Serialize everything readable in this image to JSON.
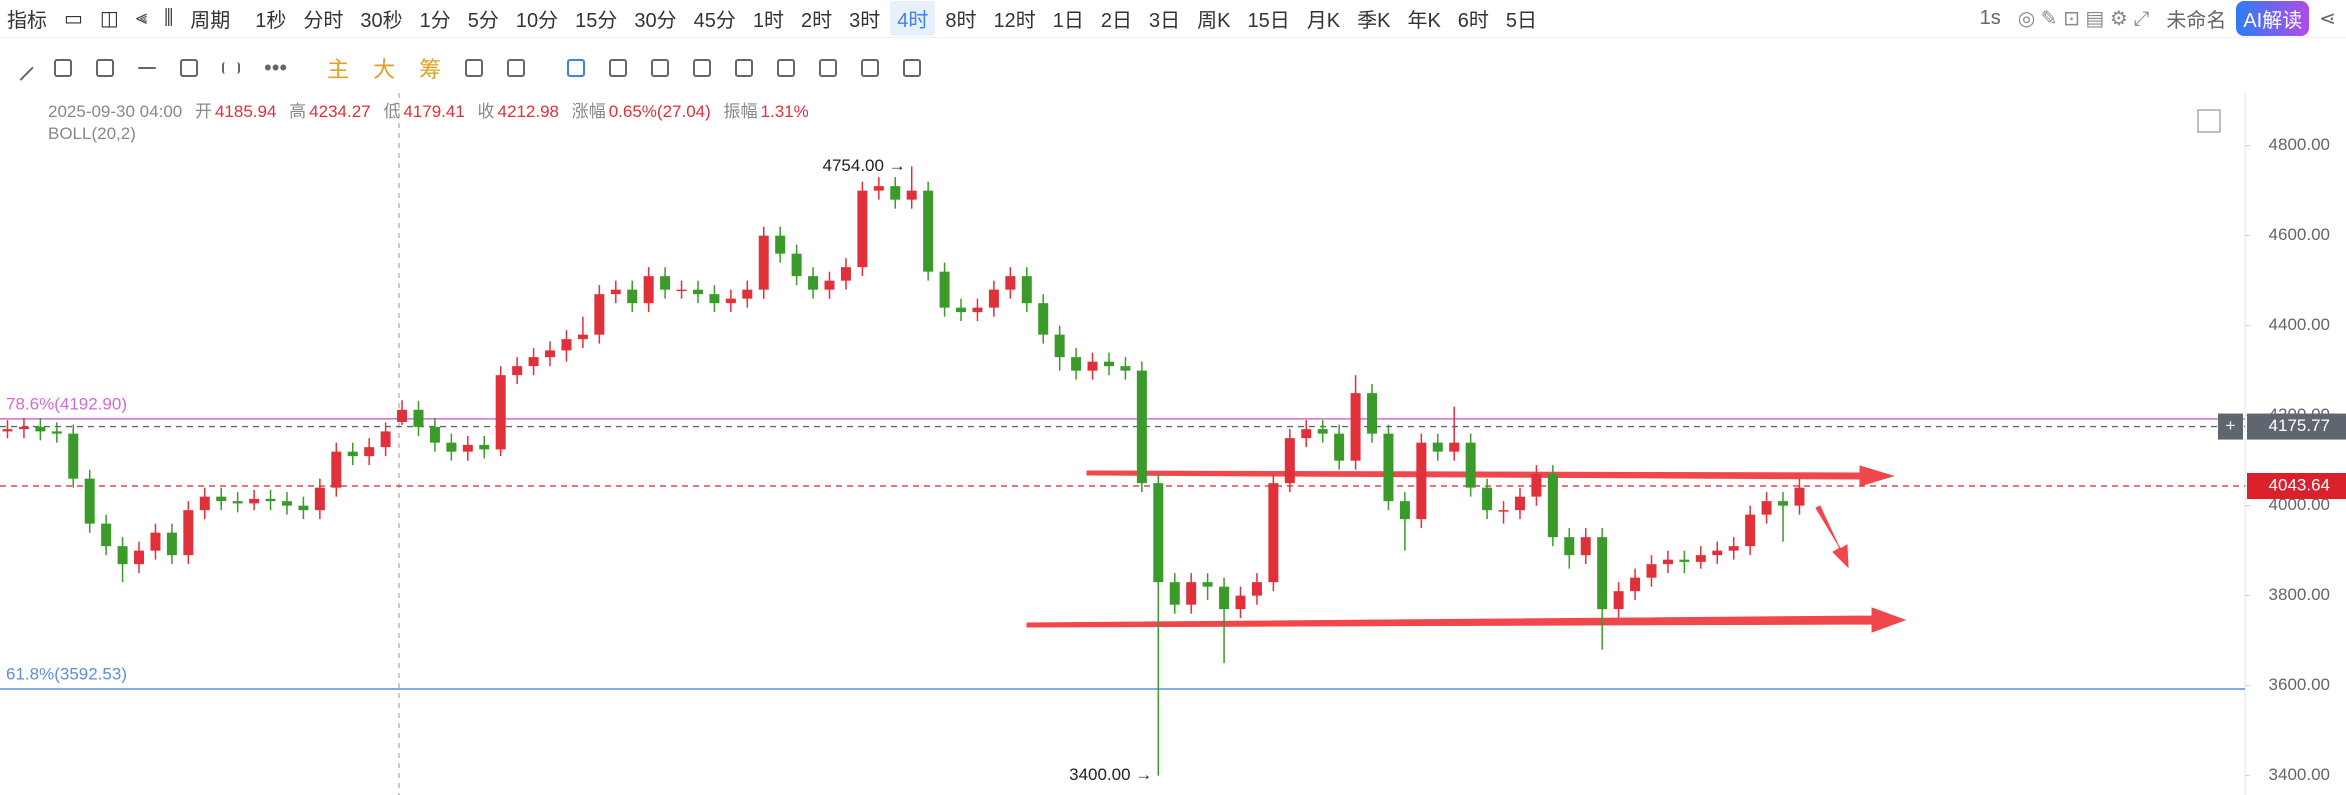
{
  "toolbar": {
    "indicator": "指标",
    "period": "周期",
    "periods": [
      "1秒",
      "分时",
      "30秒",
      "1分",
      "5分",
      "10分",
      "15分",
      "30分",
      "45分",
      "1时",
      "2时",
      "3时",
      "4时",
      "8时",
      "12时",
      "1日",
      "2日",
      "3日",
      "周K",
      "15日",
      "月K",
      "季K",
      "年K",
      "6时",
      "5日"
    ],
    "active": 12,
    "interval": "1s",
    "name": "未命名",
    "ai": "AI解读"
  },
  "tools": {
    "main": "主",
    "big": "大",
    "chips": "筹"
  },
  "info": {
    "datetime": "2025-09-30 04:00",
    "open_label": "开",
    "open": 4185.94,
    "high_label": "高",
    "high": 4234.27,
    "low_label": "低",
    "low": 4179.41,
    "close_label": "收",
    "close": 4212.98,
    "change_label": "涨幅",
    "change": "0.65%(27.04)",
    "amp_label": "振幅",
    "amp": "1.31%"
  },
  "indicator": "BOLL(20,2)",
  "chart_data": {
    "type": "candlestick",
    "up_color": "#e0303a",
    "down_color": "#3a9a2a",
    "open": [
      4165,
      4170,
      4175,
      4165,
      4160,
      4060,
      3960,
      3910,
      3870,
      3900,
      3940,
      3890,
      3990,
      4020,
      4010,
      4005,
      4015,
      4010,
      4000,
      3990,
      4040,
      4120,
      4110,
      4130,
      4185.94,
      4213,
      4175,
      4140,
      4120,
      4135,
      4125,
      4290,
      4310,
      4330,
      4345,
      4370,
      4380,
      4470,
      4480,
      4450,
      4510,
      4480,
      4480,
      4470,
      4450,
      4460,
      4480,
      4600,
      4560,
      4510,
      4480,
      4500,
      4530,
      4700,
      4710,
      4680,
      4700,
      4520,
      4440,
      4430,
      4440,
      4480,
      4510,
      4450,
      4380,
      4330,
      4300,
      4320,
      4310,
      4300,
      4050,
      3830,
      3780,
      3830,
      3820,
      3770,
      3800,
      3830,
      4050,
      4150,
      4170,
      4160,
      4100,
      4250,
      4160,
      4010,
      3970,
      4140,
      4120,
      4140,
      4040,
      3990,
      3990,
      4020,
      4070,
      3930,
      3890,
      3930,
      3770,
      3810,
      3840,
      3870,
      3880,
      3875,
      3890,
      3900,
      3910,
      3980,
      4010,
      4000
    ],
    "high": [
      4190,
      4195,
      4195,
      4185,
      4180,
      4080,
      3980,
      3930,
      3920,
      3960,
      3960,
      4010,
      4040,
      4040,
      4030,
      4035,
      4035,
      4030,
      4020,
      4060,
      4140,
      4140,
      4150,
      4185,
      4234.27,
      4233,
      4195,
      4160,
      4155,
      4155,
      4310,
      4330,
      4350,
      4365,
      4390,
      4420,
      4490,
      4500,
      4500,
      4530,
      4530,
      4500,
      4500,
      4490,
      4480,
      4500,
      4620,
      4620,
      4580,
      4530,
      4520,
      4550,
      4720,
      4730,
      4730,
      4754,
      4720,
      4540,
      4460,
      4460,
      4500,
      4530,
      4530,
      4470,
      4400,
      4350,
      4340,
      4340,
      4330,
      4320,
      4070,
      3850,
      3850,
      3850,
      3840,
      3820,
      3850,
      4070,
      4170,
      4190,
      4190,
      4180,
      4290,
      4270,
      4180,
      4030,
      4160,
      4160,
      4220,
      4160,
      4060,
      4010,
      4040,
      4090,
      4090,
      3950,
      3950,
      3950,
      3830,
      3860,
      3890,
      3900,
      3900,
      3910,
      3920,
      3930,
      4000,
      4030,
      4030,
      4060
    ],
    "low": [
      4150,
      4150,
      4145,
      4140,
      4040,
      3940,
      3890,
      3830,
      3850,
      3880,
      3870,
      3870,
      3970,
      3990,
      3985,
      3990,
      3990,
      3980,
      3970,
      3970,
      4020,
      4090,
      4090,
      4110,
      4179.41,
      4155,
      4120,
      4100,
      4100,
      4105,
      4110,
      4270,
      4290,
      4310,
      4320,
      4350,
      4360,
      4450,
      4430,
      4430,
      4460,
      4460,
      4450,
      4430,
      4430,
      4440,
      4460,
      4540,
      4490,
      4460,
      4460,
      4480,
      4510,
      4680,
      4660,
      4660,
      4500,
      4420,
      4410,
      4410,
      4420,
      4460,
      4430,
      4360,
      4300,
      4280,
      4280,
      4290,
      4280,
      4030,
      3400,
      3760,
      3760,
      3790,
      3650,
      3750,
      3780,
      3810,
      4030,
      4130,
      4140,
      4080,
      4080,
      4140,
      3990,
      3900,
      3950,
      4100,
      4100,
      4020,
      3970,
      3960,
      3970,
      4000,
      3910,
      3860,
      3870,
      3680,
      3750,
      3790,
      3820,
      3850,
      3850,
      3860,
      3870,
      3880,
      3890,
      3960,
      3920,
      3980
    ],
    "close": [
      4170,
      4175,
      4165,
      4160,
      4060,
      3960,
      3910,
      3870,
      3900,
      3940,
      3890,
      3990,
      4020,
      4010,
      4005,
      4015,
      4010,
      4000,
      3990,
      4040,
      4120,
      4110,
      4130,
      4165,
      4212.98,
      4175,
      4140,
      4120,
      4135,
      4125,
      4290,
      4310,
      4330,
      4345,
      4370,
      4380,
      4470,
      4480,
      4450,
      4510,
      4480,
      4480,
      4470,
      4450,
      4460,
      4480,
      4600,
      4560,
      4510,
      4480,
      4500,
      4530,
      4700,
      4710,
      4680,
      4700,
      4520,
      4440,
      4430,
      4440,
      4480,
      4510,
      4450,
      4380,
      4330,
      4300,
      4320,
      4310,
      4300,
      4050,
      3830,
      3780,
      3830,
      3820,
      3770,
      3800,
      3830,
      4050,
      4150,
      4170,
      4160,
      4100,
      4250,
      4160,
      4010,
      3970,
      4140,
      4120,
      4140,
      4040,
      3990,
      3990,
      4020,
      4070,
      3930,
      3890,
      3930,
      3770,
      3810,
      3840,
      3870,
      3880,
      3875,
      3890,
      3900,
      3910,
      3980,
      4010,
      4000,
      4040
    ],
    "ylim": [
      3357,
      4917
    ],
    "yticks": [
      {
        "value": 3400,
        "label": "3400.00"
      },
      {
        "value": 3600,
        "label": "3600.00"
      },
      {
        "value": 3800,
        "label": "3800.00"
      },
      {
        "value": 4000,
        "label": "4000.00"
      },
      {
        "value": 4200,
        "label": "4200.00"
      },
      {
        "value": 4400,
        "label": "4400.00"
      },
      {
        "value": 4600,
        "label": "4600.00"
      },
      {
        "value": 4800,
        "label": "4800.00"
      }
    ],
    "levels": [
      {
        "label": "78.6%(4192.90)",
        "value": 4192.9,
        "color": "#d46ad6"
      },
      {
        "label": "61.8%(3592.53)",
        "value": 3592.53,
        "color": "#5b8fd9"
      }
    ],
    "price_tags": [
      {
        "value": 4175.77,
        "color": "#5f6670"
      },
      {
        "value": 4043.64,
        "color": "#d9202c"
      }
    ],
    "max_label": {
      "value": 4754,
      "label": "4754.00 →"
    },
    "min_label": {
      "value": 3400,
      "label": "3400.00 →"
    }
  }
}
